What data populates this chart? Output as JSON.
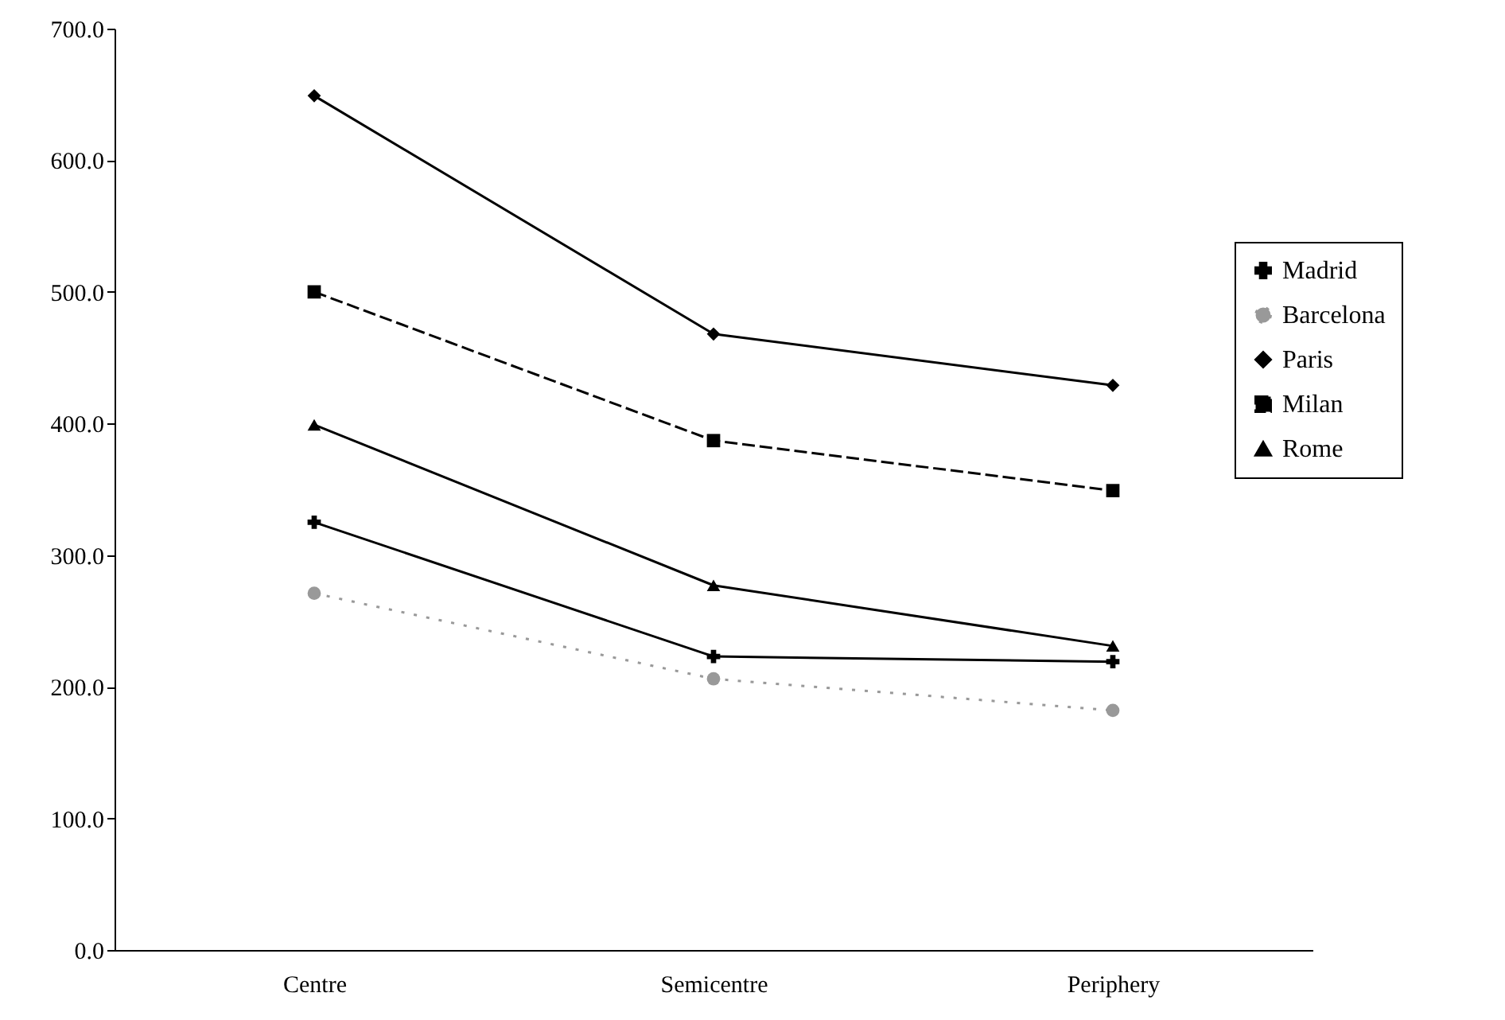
{
  "chart_data": {
    "type": "line",
    "categories": [
      "Centre",
      "Semicentre",
      "Periphery"
    ],
    "ylim": [
      0,
      700
    ],
    "yticks": [
      {
        "value": 0,
        "label": "0.0"
      },
      {
        "value": 100,
        "label": "100.0"
      },
      {
        "value": 200,
        "label": "200.0"
      },
      {
        "value": 300,
        "label": "300.0"
      },
      {
        "value": 400,
        "label": "400.0"
      },
      {
        "value": 500,
        "label": "500.0"
      },
      {
        "value": 600,
        "label": "600.0"
      },
      {
        "value": 700,
        "label": "700.0"
      }
    ],
    "legend": "right",
    "grid": false,
    "series": [
      {
        "name": "Madrid",
        "color": "#000000",
        "values": [
          325,
          223,
          219
        ],
        "marker": "cross",
        "line_style": "solid"
      },
      {
        "name": "Barcelona",
        "color": "#999999",
        "values": [
          271,
          206,
          182
        ],
        "marker": "circle",
        "line_style": "dotted"
      },
      {
        "name": "Paris",
        "color": "#000000",
        "values": [
          649,
          468,
          429
        ],
        "marker": "diamond",
        "line_style": "solid"
      },
      {
        "name": "Milan",
        "color": "#000000",
        "values": [
          500,
          387,
          349
        ],
        "marker": "square",
        "line_style": "dashed"
      },
      {
        "name": "Rome",
        "color": "#000000",
        "values": [
          399,
          277,
          231
        ],
        "marker": "triangle",
        "line_style": "solid"
      }
    ]
  }
}
